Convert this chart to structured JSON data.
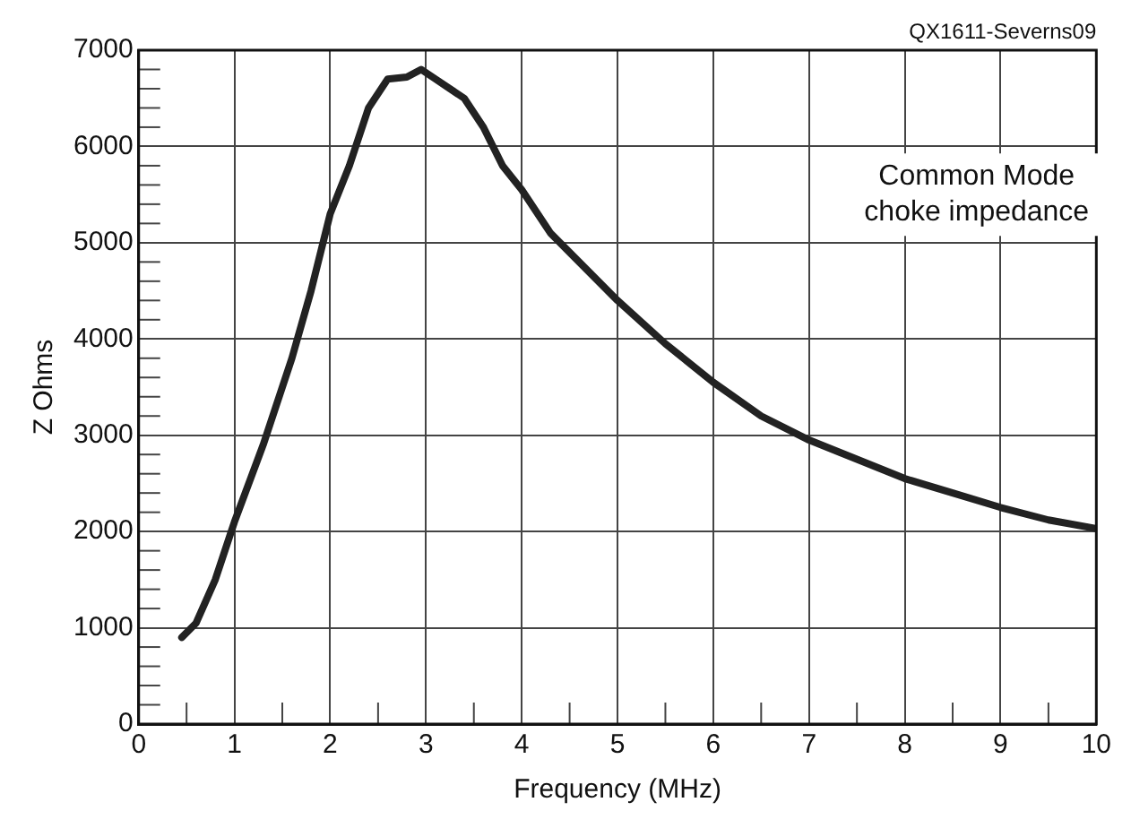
{
  "chart_data": {
    "type": "line",
    "xlabel": "Frequency (MHz)",
    "ylabel": "Z Ohms",
    "annotations": [
      "QX1611-Severns09",
      "Common Mode\nchoke impedance"
    ],
    "x": [
      0.45,
      0.6,
      0.8,
      1,
      1.3,
      1.6,
      1.8,
      2,
      2.2,
      2.4,
      2.6,
      2.8,
      2.95,
      3.1,
      3.4,
      3.6,
      3.8,
      4,
      4.3,
      4.6,
      5,
      5.5,
      6,
      6.5,
      7,
      7.5,
      8,
      8.5,
      9,
      9.5,
      10
    ],
    "series": [
      {
        "color": "#222222",
        "values": [
          900,
          1050,
          1500,
          2100,
          2900,
          3800,
          4500,
          5300,
          5800,
          6400,
          6700,
          6720,
          6800,
          6700,
          6500,
          6200,
          5800,
          5550,
          5100,
          4800,
          4400,
          3950,
          3550,
          3200,
          2950,
          2750,
          2550,
          2400,
          2250,
          2120,
          2030
        ]
      }
    ],
    "xlim": [
      0,
      10
    ],
    "xticks": [
      0,
      {
        "value": 0.5,
        "label": null
      },
      1,
      {
        "value": 1.5,
        "label": null
      },
      2,
      {
        "value": 2.5,
        "label": null
      },
      3,
      {
        "value": 3.5,
        "label": null
      },
      4,
      {
        "value": 4.5,
        "label": null
      },
      5,
      {
        "value": 5.5,
        "label": null
      },
      6,
      {
        "value": 6.5,
        "label": null
      },
      7,
      {
        "value": 7.5,
        "label": null
      },
      8,
      {
        "value": 8.5,
        "label": null
      },
      9,
      {
        "value": 9.5,
        "label": null
      },
      10
    ],
    "ylim": [
      0,
      7000
    ],
    "yticks": [
      0,
      {
        "value": 200,
        "label": null
      },
      {
        "value": 400,
        "label": null
      },
      {
        "value": 600,
        "label": null
      },
      {
        "value": 800,
        "label": null
      },
      1000,
      {
        "value": 1200,
        "label": null
      },
      {
        "value": 1400,
        "label": null
      },
      {
        "value": 1600,
        "label": null
      },
      {
        "value": 1800,
        "label": null
      },
      2000,
      {
        "value": 2200,
        "label": null
      },
      {
        "value": 2400,
        "label": null
      },
      {
        "value": 2600,
        "label": null
      },
      {
        "value": 2800,
        "label": null
      },
      3000,
      {
        "value": 3200,
        "label": null
      },
      {
        "value": 3400,
        "label": null
      },
      {
        "value": 3600,
        "label": null
      },
      {
        "value": 3800,
        "label": null
      },
      4000,
      {
        "value": 4200,
        "label": null
      },
      {
        "value": 4400,
        "label": null
      },
      {
        "value": 4600,
        "label": null
      },
      {
        "value": 4800,
        "label": null
      },
      5000,
      {
        "value": 5200,
        "label": null
      },
      {
        "value": 5400,
        "label": null
      },
      {
        "value": 5600,
        "label": null
      },
      {
        "value": 5800,
        "label": null
      },
      6000,
      {
        "value": 6200,
        "label": null
      },
      {
        "value": 6400,
        "label": null
      },
      {
        "value": 6600,
        "label": null
      },
      {
        "value": 6800,
        "label": null
      },
      7000
    ],
    "grid": true,
    "legend": false,
    "marker": "none",
    "line_style": "solid"
  }
}
